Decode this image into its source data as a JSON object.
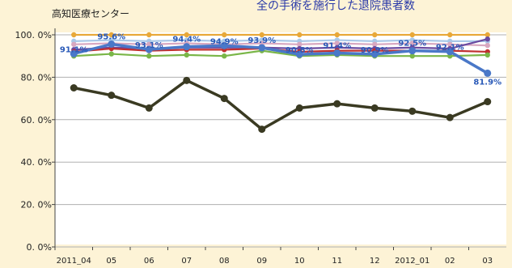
{
  "chart_data": {
    "type": "line",
    "title": "全の手術を施行した退院患者数",
    "subtitle": "高知医療センター",
    "categories": [
      "2011_04",
      "05",
      "06",
      "07",
      "08",
      "09",
      "10",
      "11",
      "12",
      "2012_01",
      "02",
      "03"
    ],
    "ylim": [
      0,
      100
    ],
    "yticks": [
      "0. 0%",
      "20. 0%",
      "40. 0%",
      "60. 0%",
      "80. 0%",
      "100. 0%"
    ],
    "ytick_values": [
      0,
      20,
      40,
      60,
      80,
      100
    ],
    "grid": true,
    "series": [
      {
        "color": "#3a3a22",
        "values": [
          75,
          71.5,
          65.5,
          78.5,
          70,
          55.5,
          65.5,
          67.5,
          65.5,
          64,
          61,
          68.5
        ]
      },
      {
        "color": "#4a78c8",
        "values": [
          91.1,
          95.6,
          93.1,
          94.4,
          94.9,
          93.9,
          90.8,
          91.4,
          90.9,
          92.5,
          92.1,
          81.9
        ],
        "labels": [
          "91.1%",
          "95.6%",
          "93.1%",
          "94.4%",
          "94.9%",
          "93.9%",
          "90.8%",
          "91.4%",
          "90.9%",
          "92.5%",
          "92.1%",
          "81.9%"
        ]
      },
      {
        "color": "#7ab648",
        "values": [
          90,
          91,
          90,
          90.5,
          90,
          92.5,
          90,
          90.5,
          90,
          90,
          90,
          90.5
        ]
      },
      {
        "color": "#c03030",
        "values": [
          92,
          93.5,
          92.5,
          93,
          93,
          93.5,
          92,
          92.5,
          92.5,
          92.5,
          92.5,
          92
        ]
      },
      {
        "color": "#6a4aa0",
        "values": [
          93,
          94,
          93.5,
          94,
          94,
          94,
          93.5,
          94,
          93.5,
          94,
          93.5,
          98
        ]
      },
      {
        "color": "#e8a838",
        "values": [
          100,
          100,
          100,
          100,
          100,
          100,
          100,
          100,
          100,
          100,
          100,
          100
        ]
      },
      {
        "color": "#d8a8c0",
        "values": [
          95.5,
          96,
          95.5,
          96,
          95.5,
          96,
          95.5,
          96,
          95.5,
          96,
          95.5,
          95
        ]
      },
      {
        "color": "#a8c8e8",
        "values": [
          97,
          97.5,
          97,
          97.5,
          97,
          97.5,
          97,
          97.5,
          97,
          97.5,
          97,
          97
        ]
      }
    ]
  }
}
